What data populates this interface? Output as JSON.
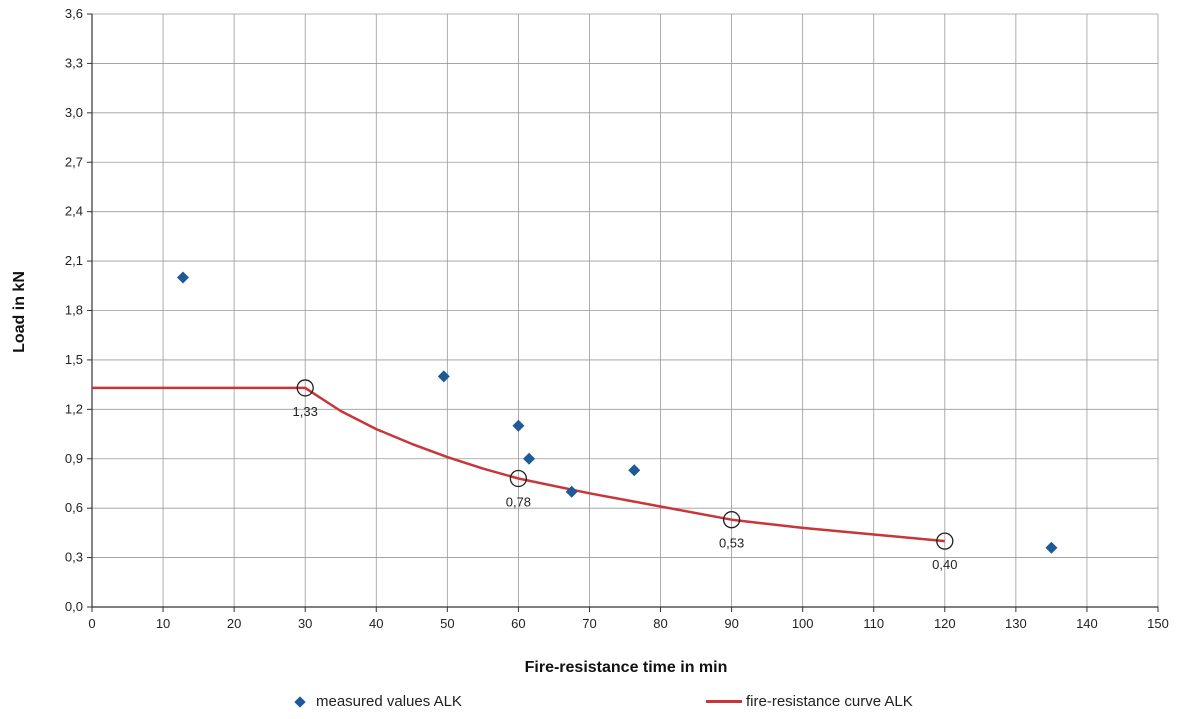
{
  "colors": {
    "measured": "#1f5a96",
    "curve": "#c8363c",
    "grid": "#9a9a9a",
    "axis": "#333333"
  },
  "chart_data": {
    "type": "scatter",
    "xlabel": "Fire-resistance time in min",
    "ylabel": "Load in kN",
    "xlim": [
      0,
      150
    ],
    "ylim": [
      0,
      3.6
    ],
    "xticks": [
      0,
      10,
      20,
      30,
      40,
      50,
      60,
      70,
      80,
      90,
      100,
      110,
      120,
      130,
      140,
      150
    ],
    "yticks": [
      "0,0",
      "0,3",
      "0,6",
      "0,9",
      "1,2",
      "1,5",
      "1,8",
      "2,1",
      "2,4",
      "2,7",
      "3,0",
      "3,3",
      "3,6"
    ],
    "grid": "on",
    "legend_position": "bottom",
    "series": [
      {
        "name": "measured values ALK",
        "type": "scatter",
        "marker": "diamond",
        "points": [
          {
            "x": 12.8,
            "y": 2.0
          },
          {
            "x": 49.5,
            "y": 1.4
          },
          {
            "x": 60.0,
            "y": 1.1
          },
          {
            "x": 61.5,
            "y": 0.9
          },
          {
            "x": 67.5,
            "y": 0.7
          },
          {
            "x": 76.3,
            "y": 0.83
          },
          {
            "x": 135.0,
            "y": 0.36
          }
        ]
      },
      {
        "name": "fire-resistance curve ALK",
        "type": "line",
        "points": [
          {
            "x": 0,
            "y": 1.33
          },
          {
            "x": 30,
            "y": 1.33
          },
          {
            "x": 35,
            "y": 1.19
          },
          {
            "x": 40,
            "y": 1.08
          },
          {
            "x": 45,
            "y": 0.99
          },
          {
            "x": 50,
            "y": 0.91
          },
          {
            "x": 55,
            "y": 0.84
          },
          {
            "x": 60,
            "y": 0.78
          },
          {
            "x": 70,
            "y": 0.69
          },
          {
            "x": 80,
            "y": 0.61
          },
          {
            "x": 90,
            "y": 0.53
          },
          {
            "x": 100,
            "y": 0.48
          },
          {
            "x": 110,
            "y": 0.44
          },
          {
            "x": 120,
            "y": 0.4
          }
        ]
      }
    ],
    "annotations": [
      {
        "x": 30,
        "y": 1.33,
        "label": "1,33"
      },
      {
        "x": 60,
        "y": 0.78,
        "label": "0,78"
      },
      {
        "x": 90,
        "y": 0.53,
        "label": "0,53"
      },
      {
        "x": 120,
        "y": 0.4,
        "label": "0,40"
      }
    ]
  }
}
